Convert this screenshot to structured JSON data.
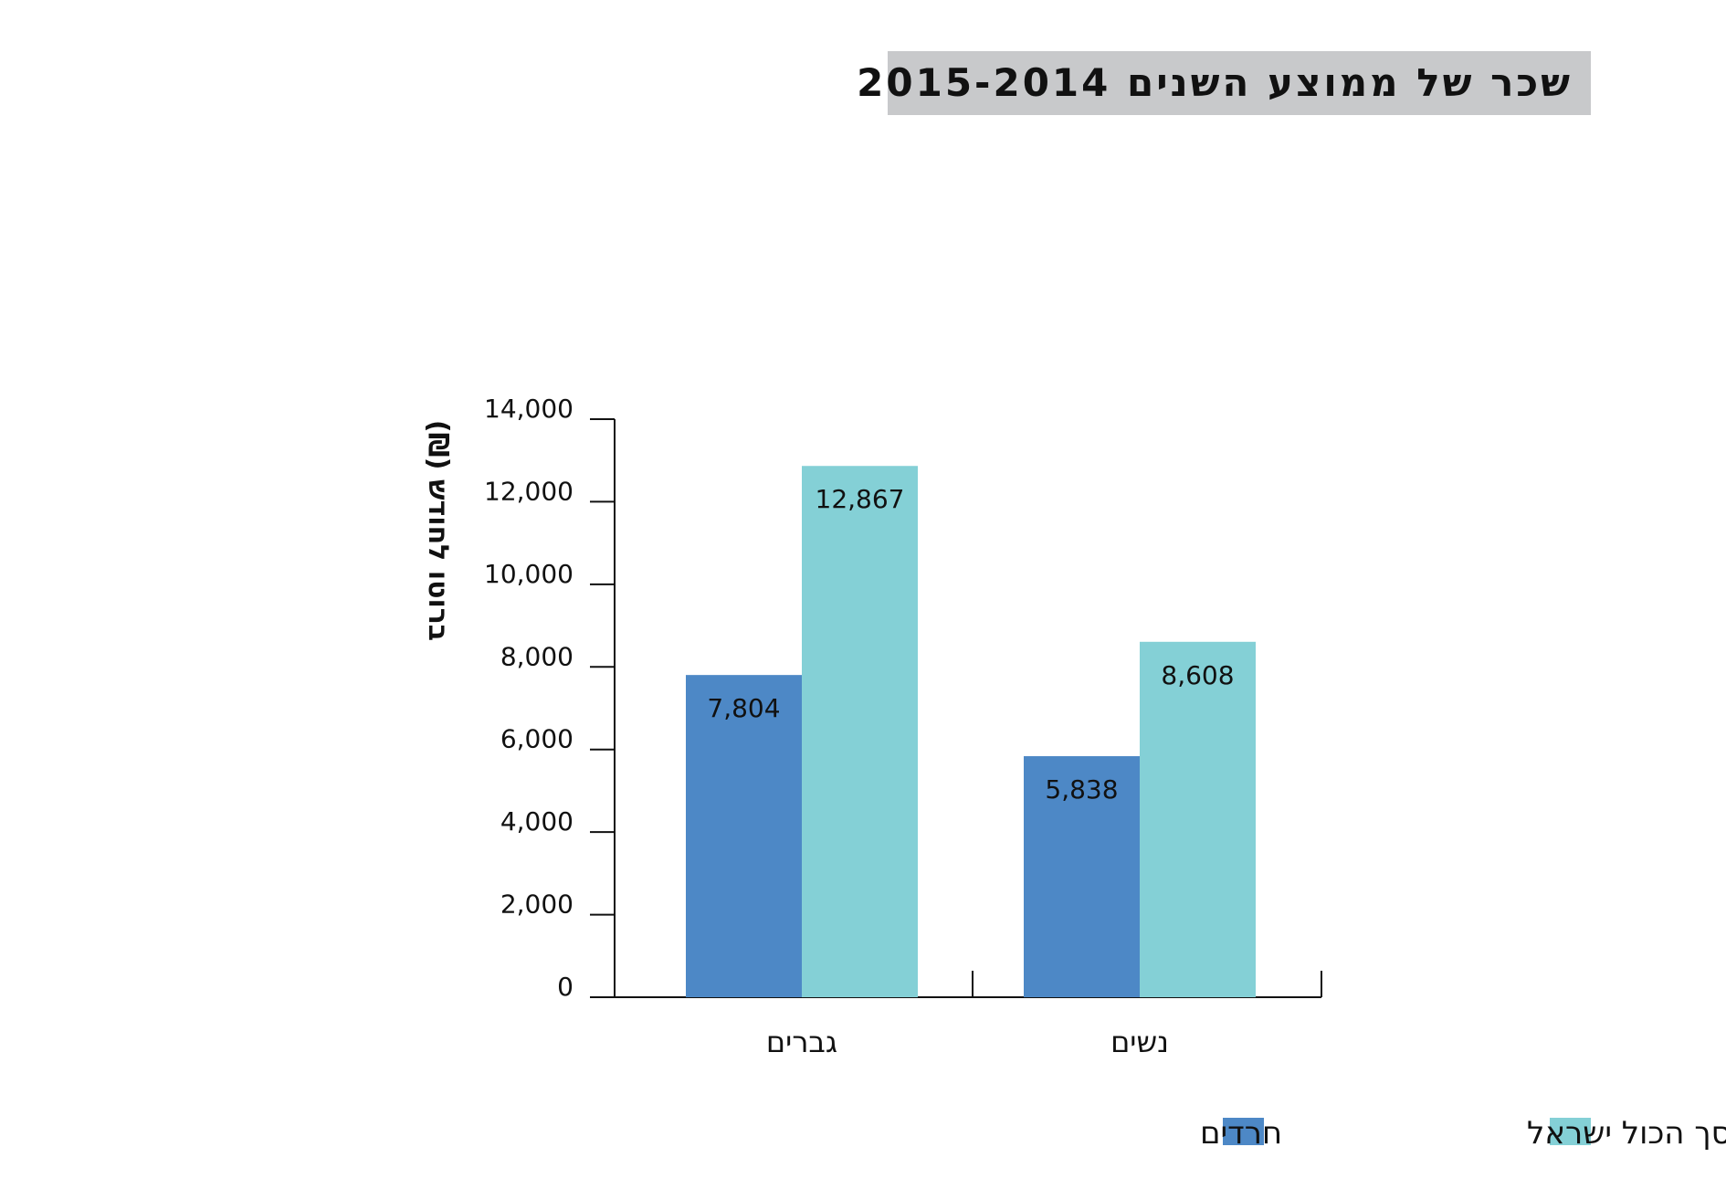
{
  "title": "שכר של ממוצע השנים 2015-2014",
  "chart_data": {
    "type": "bar",
    "title": "שכר של ממוצע השנים 2015-2014",
    "ylabel": "ברוטו לחודש (₪)",
    "xlabel": "",
    "categories": [
      "גברים",
      "נשים"
    ],
    "series": [
      {
        "name": "חרדים",
        "color": "#4d88c6",
        "values": [
          7804,
          5838
        ],
        "labels": [
          "7,804",
          "5,838"
        ]
      },
      {
        "name": "סך הכול ישראל",
        "color": "#84d0d6",
        "values": [
          12867,
          8608
        ],
        "labels": [
          "12,867",
          "8,608"
        ]
      }
    ],
    "ylim": [
      0,
      14000
    ],
    "yticks": [
      0,
      2000,
      4000,
      6000,
      8000,
      10000,
      12000,
      14000
    ],
    "ytick_labels": [
      "0",
      "2,000",
      "4,000",
      "6,000",
      "8,000",
      "10,000",
      "12,000",
      "14,000"
    ],
    "grid": false,
    "legend_position": "bottom-right"
  }
}
